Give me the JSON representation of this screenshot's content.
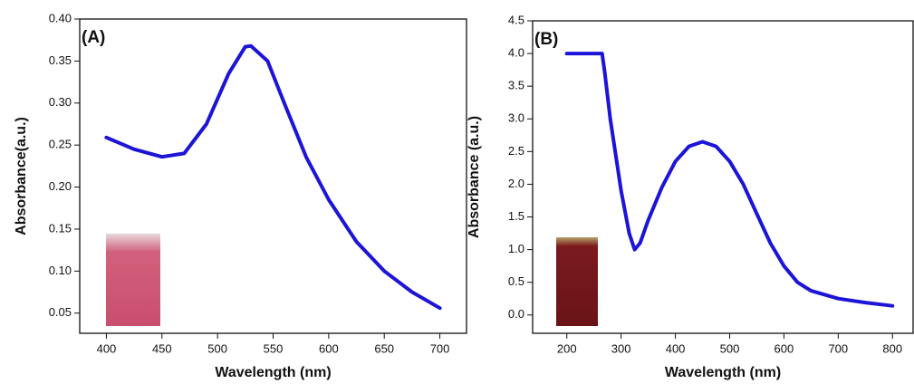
{
  "chart_data": [
    {
      "type": "line",
      "title": "(A)",
      "x_label": "Wavelength (nm)",
      "y_label": "Absorbance(a.u.)",
      "x": [
        400,
        425,
        450,
        470,
        490,
        510,
        525,
        530,
        545,
        560,
        580,
        600,
        625,
        650,
        675,
        700
      ],
      "series": [
        {
          "color": "#1c14d6",
          "values": [
            0.259,
            0.245,
            0.236,
            0.24,
            0.275,
            0.335,
            0.367,
            0.368,
            0.35,
            0.3,
            0.235,
            0.185,
            0.135,
            0.1,
            0.075,
            0.056
          ]
        }
      ],
      "xlim": [
        376,
        724
      ],
      "ylim": [
        0.026,
        0.4
      ],
      "xticks": [
        400,
        450,
        500,
        550,
        600,
        650,
        700
      ],
      "yticks": [
        0.05,
        {
          "value": 0.1,
          "label": "0.10"
        },
        0.15,
        {
          "value": 0.2,
          "label": "0.20"
        },
        0.25,
        {
          "value": 0.3,
          "label": "0.30"
        },
        0.35,
        {
          "value": 0.4,
          "label": "0.40"
        }
      ]
    },
    {
      "type": "line",
      "title": "(B)",
      "x_label": "Wavelength (nm)",
      "y_label": "Absorbance (a.u.)",
      "x": [
        200,
        265,
        270,
        280,
        300,
        315,
        325,
        335,
        350,
        375,
        400,
        425,
        450,
        475,
        500,
        525,
        550,
        575,
        600,
        625,
        650,
        700,
        750,
        800
      ],
      "series": [
        {
          "color": "#1c14d6",
          "values": [
            4.0,
            4.0,
            3.7,
            3.0,
            1.9,
            1.25,
            1.0,
            1.1,
            1.45,
            1.95,
            2.35,
            2.58,
            2.65,
            2.58,
            2.35,
            2.0,
            1.55,
            1.1,
            0.75,
            0.5,
            0.37,
            0.25,
            0.19,
            0.14
          ]
        }
      ],
      "xlim": [
        137,
        838
      ],
      "ylim": [
        -0.28,
        4.5
      ],
      "xticks": [
        200,
        300,
        400,
        500,
        600,
        700,
        800
      ],
      "yticks": [
        {
          "value": 0,
          "label": "0.0"
        },
        0.5,
        {
          "value": 1,
          "label": "1.0"
        },
        1.5,
        {
          "value": 2,
          "label": "2.0"
        },
        2.5,
        {
          "value": 3,
          "label": "3.0"
        },
        3.5,
        {
          "value": 4,
          "label": "4.0"
        },
        4.5
      ]
    }
  ]
}
